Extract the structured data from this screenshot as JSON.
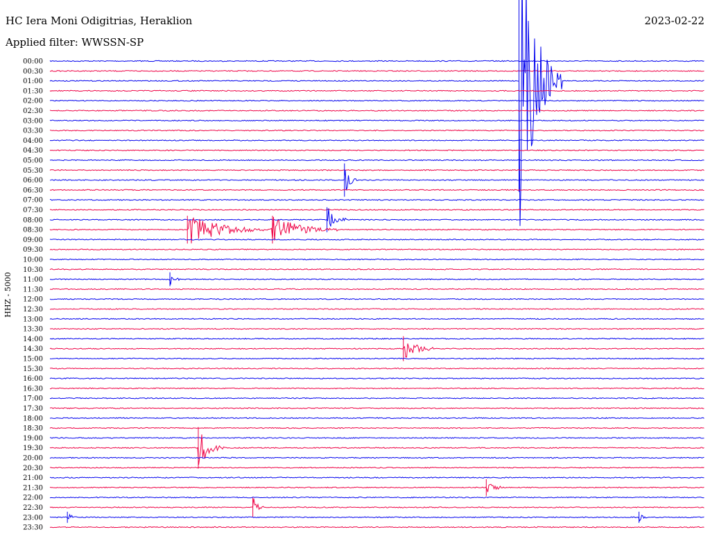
{
  "header": {
    "station": "HC Iera Moni Odigitrias, Heraklion",
    "date": "2023-02-22",
    "filter": "Applied filter: WWSSN-SP"
  },
  "chart_data": {
    "type": "line",
    "ylabel": "HHZ - 5000",
    "colors": {
      "even_row": "#0000ee",
      "odd_row": "#ee0044"
    },
    "rows": [
      "00:00",
      "00:30",
      "01:00",
      "01:30",
      "02:00",
      "02:30",
      "03:00",
      "03:30",
      "04:00",
      "04:30",
      "05:00",
      "05:30",
      "06:00",
      "06:30",
      "07:00",
      "07:30",
      "08:00",
      "08:30",
      "09:00",
      "09:30",
      "10:00",
      "10:30",
      "11:00",
      "11:30",
      "12:00",
      "12:30",
      "13:00",
      "13:30",
      "14:00",
      "14:30",
      "15:00",
      "15:30",
      "16:00",
      "16:30",
      "17:00",
      "17:30",
      "18:00",
      "18:30",
      "19:00",
      "19:30",
      "20:00",
      "20:30",
      "21:00",
      "21:30",
      "22:00",
      "22:30",
      "23:00",
      "23:30"
    ],
    "events": [
      {
        "row": "01:00",
        "minute": 21.5,
        "amplitude": 10,
        "duration": 2.0
      },
      {
        "row": "06:00",
        "minute": 13.5,
        "amplitude": 1.2,
        "duration": 0.6
      },
      {
        "row": "08:00",
        "minute": 12.7,
        "amplitude": 0.9,
        "duration": 1.0
      },
      {
        "row": "08:30",
        "minute": 6.3,
        "amplitude": 1.0,
        "duration": 4.0
      },
      {
        "row": "08:30",
        "minute": 10.2,
        "amplitude": 1.0,
        "duration": 3.0
      },
      {
        "row": "11:00",
        "minute": 5.5,
        "amplitude": 0.5,
        "duration": 0.5
      },
      {
        "row": "14:30",
        "minute": 16.2,
        "amplitude": 0.9,
        "duration": 1.5
      },
      {
        "row": "19:30",
        "minute": 6.8,
        "amplitude": 1.5,
        "duration": 1.2
      },
      {
        "row": "21:30",
        "minute": 20.0,
        "amplitude": 0.6,
        "duration": 0.8
      },
      {
        "row": "22:30",
        "minute": 9.3,
        "amplitude": 0.7,
        "duration": 0.5
      },
      {
        "row": "23:00",
        "minute": 0.8,
        "amplitude": 0.4,
        "duration": 0.4
      },
      {
        "row": "23:00",
        "minute": 27.0,
        "amplitude": 0.4,
        "duration": 0.4
      }
    ]
  }
}
